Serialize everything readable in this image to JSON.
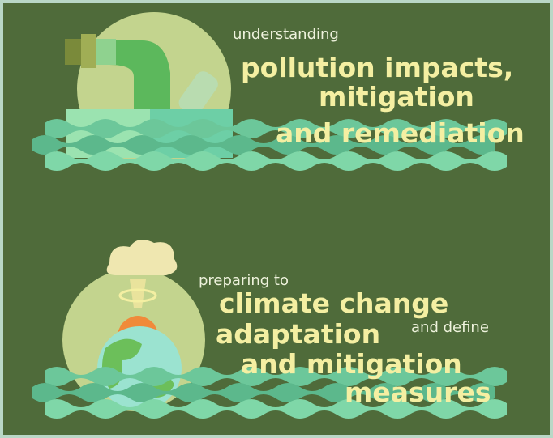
{
  "top": {
    "intro": "understanding",
    "lines": [
      "pollution impacts,",
      "mitigation",
      "and remediation"
    ]
  },
  "bottom": {
    "intro": "preparing to",
    "lines": [
      "climate change",
      "adaptation",
      "and mitigation",
      "measures"
    ],
    "aside": "and define"
  }
}
